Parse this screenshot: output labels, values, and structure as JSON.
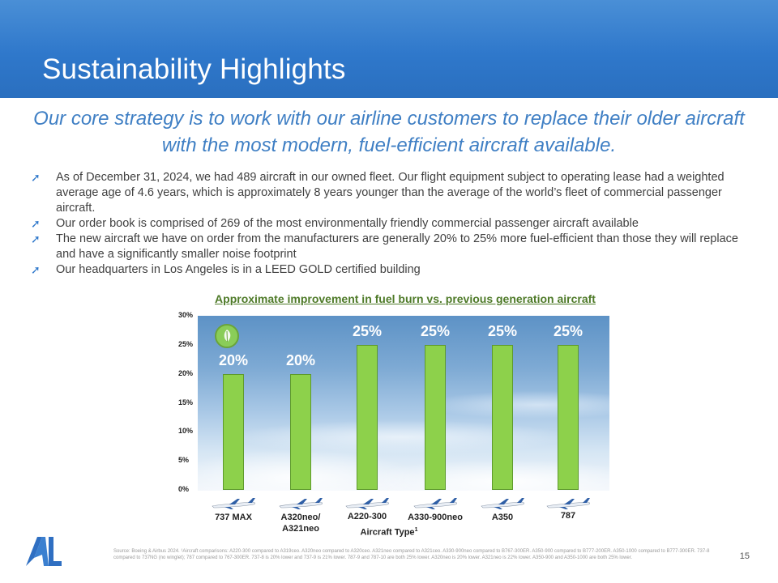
{
  "header": {
    "title": "Sustainability Highlights"
  },
  "subtitle": "Our core strategy is to work with our airline customers to replace their older aircraft with the most modern, fuel-efficient aircraft available.",
  "bullets": [
    "As of December 31, 2024, we had 489 aircraft in our owned fleet. Our flight equipment subject to operating lease had a weighted average age of 4.6 years, which is approximately 8 years younger than the average of the world’s fleet of commercial passenger aircraft.",
    "Our order book is comprised of 269 of the most environmentally friendly commercial passenger aircraft available",
    "The new aircraft we have on order from the manufacturers are generally 20% to 25% more fuel-efficient than those they will replace and have a significantly smaller noise footprint",
    "Our headquarters in Los Angeles is in a LEED GOLD certified building"
  ],
  "chart_data": {
    "type": "bar",
    "title": "Approximate improvement in fuel burn vs. previous generation aircraft",
    "xlabel": "Aircraft Type",
    "xlabel_superscript": "1",
    "ylabel": "",
    "ylim": [
      0,
      30
    ],
    "y_ticks": [
      "0%",
      "5%",
      "10%",
      "15%",
      "20%",
      "25%",
      "30%"
    ],
    "categories": [
      "737 MAX",
      "A320neo/ A321neo",
      "A220-300",
      "A330-900neo",
      "A350",
      "787"
    ],
    "values": [
      20,
      20,
      25,
      25,
      25,
      25
    ],
    "data_labels": [
      "20%",
      "20%",
      "25%",
      "25%",
      "25%",
      "25%"
    ],
    "bar_color": "#8dd14b",
    "grid": false,
    "legend": "none"
  },
  "footnote": "Source: Boeing & Airbus 2024. ¹Aircraft comparisons: A220-300 compared to A319ceo. A320neo compared to A320ceo. A321neo compared to A321ceo. A330-900neo compared to B767-300ER. A350-900 compared to B777-200ER. A350-1000 compared to B777-300ER. 737-8 compared to 737NG (no winglet); 787 compared to 767-300ER. 737-8 is 20% lower and 737-9 is 21% lower. 787-9 and 787-10 are both 25% lower. A320neo is 20% lower. A321neo is 22% lower. A350-900 and A350-1000 are both 25% lower.",
  "page_number": "15",
  "colors": {
    "header": "#2f78cb",
    "subtitle": "#3f7fc4",
    "chart_title": "#4e7a28",
    "bar": "#8dd14b"
  },
  "icons": {
    "bullet": "arrow-up-right-icon",
    "badge": "leaf-icon",
    "logo": "al-logo"
  }
}
